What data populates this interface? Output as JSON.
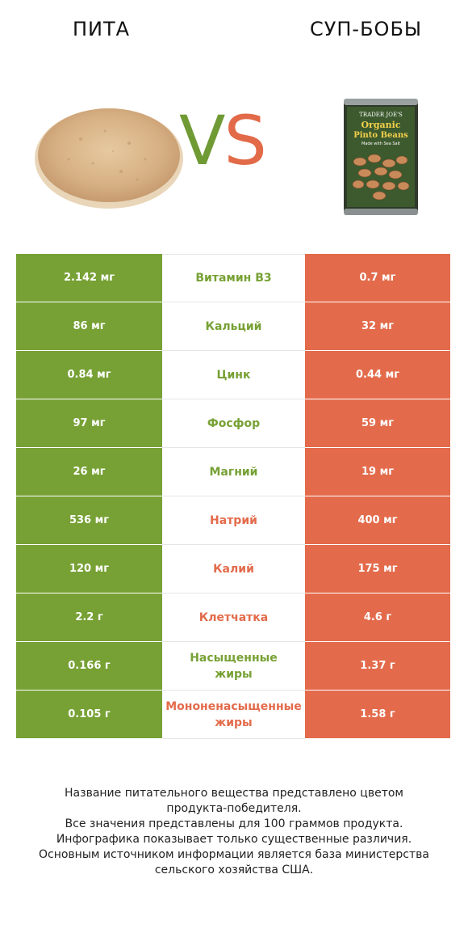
{
  "header": {
    "left_title": "ПИТА",
    "right_title": "СУП-БОБЫ",
    "vs_v": "V",
    "vs_s": "S"
  },
  "colors": {
    "left": "#77a135",
    "right": "#e36b4b"
  },
  "can_label": {
    "brand": "TRADER JOE'S",
    "line1": "Organic",
    "line2": "Pinto Beans",
    "line3": "Made with Sea Salt"
  },
  "rows": [
    {
      "left": "2.142 мг",
      "nutrient": "Витамин B3",
      "right": "0.7 мг",
      "winner": "left"
    },
    {
      "left": "86 мг",
      "nutrient": "Кальций",
      "right": "32 мг",
      "winner": "left"
    },
    {
      "left": "0.84 мг",
      "nutrient": "Цинк",
      "right": "0.44 мг",
      "winner": "left"
    },
    {
      "left": "97 мг",
      "nutrient": "Фосфор",
      "right": "59 мг",
      "winner": "left"
    },
    {
      "left": "26 мг",
      "nutrient": "Магний",
      "right": "19 мг",
      "winner": "left"
    },
    {
      "left": "536 мг",
      "nutrient": "Натрий",
      "right": "400 мг",
      "winner": "right"
    },
    {
      "left": "120 мг",
      "nutrient": "Калий",
      "right": "175 мг",
      "winner": "right"
    },
    {
      "left": "2.2 г",
      "nutrient": "Клетчатка",
      "right": "4.6 г",
      "winner": "right"
    },
    {
      "left": "0.166 г",
      "nutrient": "Насыщенные\nжиры",
      "right": "1.37 г",
      "winner": "left"
    },
    {
      "left": "0.105 г",
      "nutrient": "Мононенасыщенные\nжиры",
      "right": "1.58 г",
      "winner": "right"
    }
  ],
  "footer": [
    "Название питательного вещества представлено цветом",
    "продукта-победителя.",
    "Все значения представлены для 100 граммов продукта.",
    "Инфографика показывает только существенные различия.",
    "Основным источником информации является база министерства",
    "сельского хозяйства США."
  ]
}
